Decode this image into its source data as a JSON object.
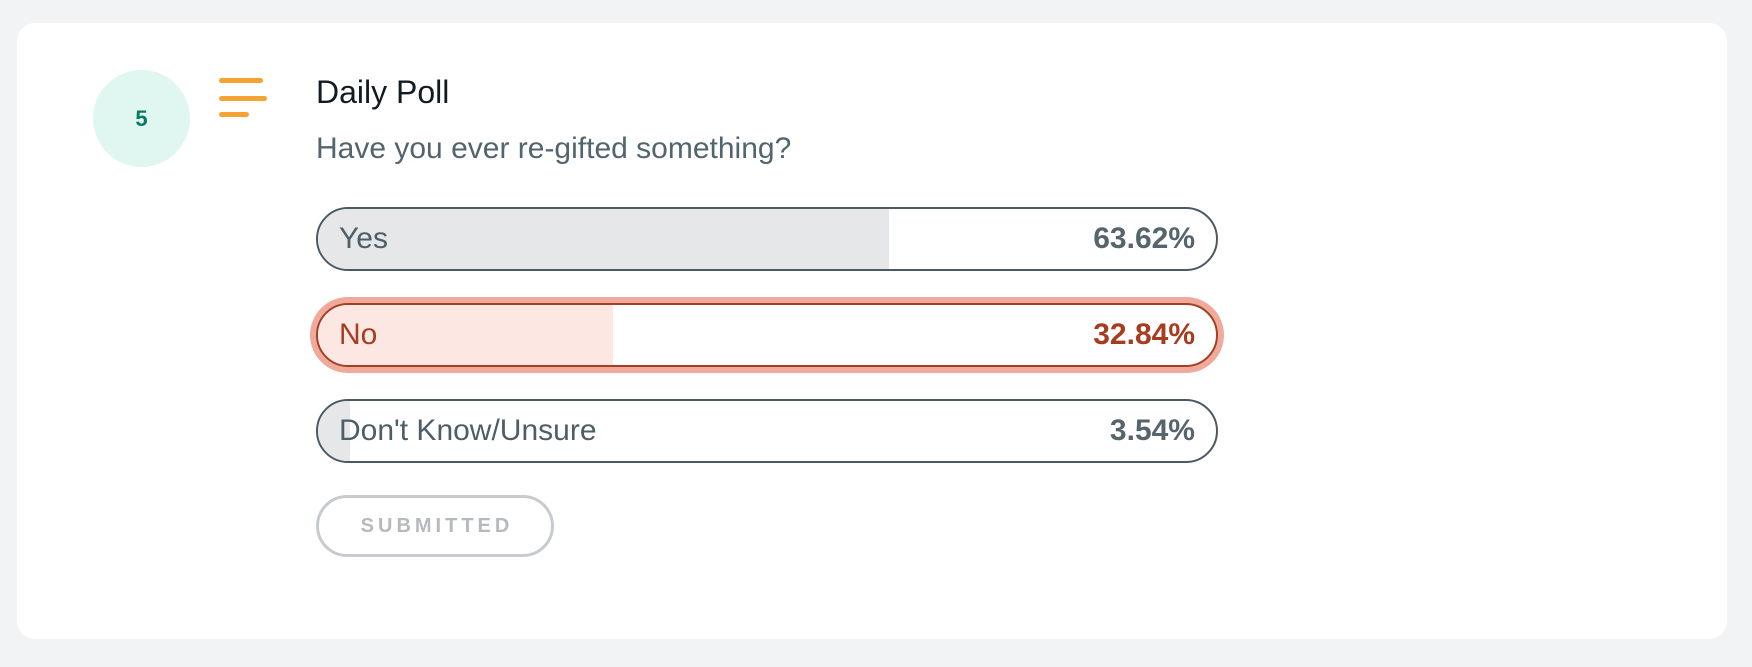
{
  "badge": {
    "value": "5"
  },
  "icons": {
    "menu": "menu-lines-icon"
  },
  "poll": {
    "title": "Daily Poll",
    "question": "Have you ever re-gifted something?",
    "options": [
      {
        "label": "Yes",
        "percent_text": "63.62%",
        "percent": 63.62,
        "selected": false
      },
      {
        "label": "No",
        "percent_text": "32.84%",
        "percent": 32.84,
        "selected": true
      },
      {
        "label": "Don't Know/Unsure",
        "percent_text": "3.54%",
        "percent": 3.54,
        "selected": false
      }
    ],
    "submit_label": "SUBMITTED"
  },
  "colors": {
    "accent_orange": "#f5a431",
    "badge_bg": "#e0f6f1",
    "badge_text": "#0a7a62",
    "selected_text": "#a63c20",
    "selected_ring": "#efaa9c",
    "selected_fill": "#fce7e2",
    "result_fill": "#e6e7e9"
  }
}
